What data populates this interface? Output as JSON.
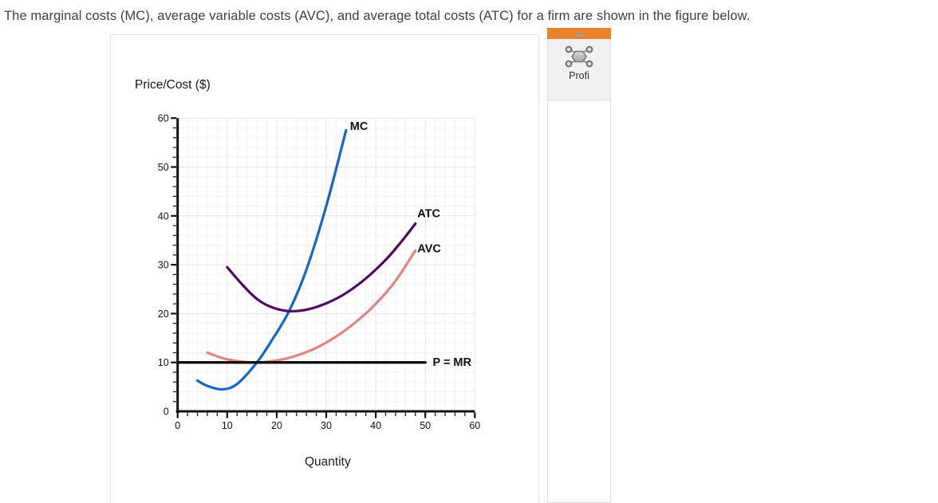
{
  "page": {
    "title": "The marginal costs (MC), average variable costs (AVC), and average total costs (ATC) for a firm are shown in the figure below."
  },
  "figure": {
    "y_axis_title": "Price/Cost ($)",
    "x_axis_title": "Quantity"
  },
  "chart_data": {
    "type": "line",
    "title": "",
    "xlabel": "Quantity",
    "ylabel": "Price/Cost ($)",
    "xlim": [
      0,
      60
    ],
    "ylim": [
      0,
      60
    ],
    "x_ticks": [
      0,
      10,
      20,
      30,
      40,
      50,
      60
    ],
    "y_ticks": [
      0,
      10,
      20,
      30,
      40,
      50,
      60
    ],
    "minor_tick_step": 2,
    "grid": true,
    "axis_color": "#111111",
    "grid_minor_color": "#f2f2f2",
    "grid_major_color": "#e4e4e4",
    "series": [
      {
        "name": "MC",
        "color": "#1467c8",
        "width": 3.2,
        "smooth": true,
        "points": [
          [
            4,
            6.3
          ],
          [
            6,
            5.2
          ],
          [
            9,
            4.5
          ],
          [
            12,
            5.6
          ],
          [
            16,
            10
          ],
          [
            19,
            14.5
          ],
          [
            22.5,
            20.5
          ],
          [
            26,
            29
          ],
          [
            30,
            42
          ],
          [
            34,
            57.5
          ]
        ],
        "label": "MC",
        "label_at": [
          34.8,
          58.4
        ]
      },
      {
        "name": "ATC",
        "color": "#4e0c61",
        "width": 3.2,
        "smooth": true,
        "points": [
          [
            10,
            29.5
          ],
          [
            13,
            26
          ],
          [
            16,
            23
          ],
          [
            19,
            21.3
          ],
          [
            22.5,
            20.5
          ],
          [
            26,
            20.8
          ],
          [
            30,
            22.1
          ],
          [
            34,
            24.2
          ],
          [
            38,
            27.2
          ],
          [
            42,
            31
          ],
          [
            45,
            34.5
          ],
          [
            48,
            38.4
          ]
        ],
        "label": "ATC",
        "label_at": [
          48.4,
          40.5
        ]
      },
      {
        "name": "AVC",
        "color": "#e08580",
        "width": 3.2,
        "smooth": true,
        "points": [
          [
            6,
            12
          ],
          [
            9,
            10.9
          ],
          [
            12,
            10.3
          ],
          [
            16,
            10
          ],
          [
            20,
            10.4
          ],
          [
            24,
            11.4
          ],
          [
            28,
            13
          ],
          [
            32,
            15.3
          ],
          [
            36,
            18.3
          ],
          [
            40,
            22
          ],
          [
            44,
            26.7
          ],
          [
            48,
            32.9
          ]
        ],
        "label": "AVC",
        "label_at": [
          48.4,
          33.4
        ]
      },
      {
        "name": "P = MR",
        "color": "#111111",
        "width": 3.4,
        "smooth": false,
        "points": [
          [
            0,
            10
          ],
          [
            50,
            10
          ]
        ],
        "label": "P = MR",
        "label_at": [
          51.5,
          10.1
        ]
      }
    ]
  },
  "panel": {
    "tool_label": "Profi",
    "header_color": "#e8832c",
    "collapse_icon": "triangle-up",
    "shape_icon": "polygon-nodes"
  }
}
